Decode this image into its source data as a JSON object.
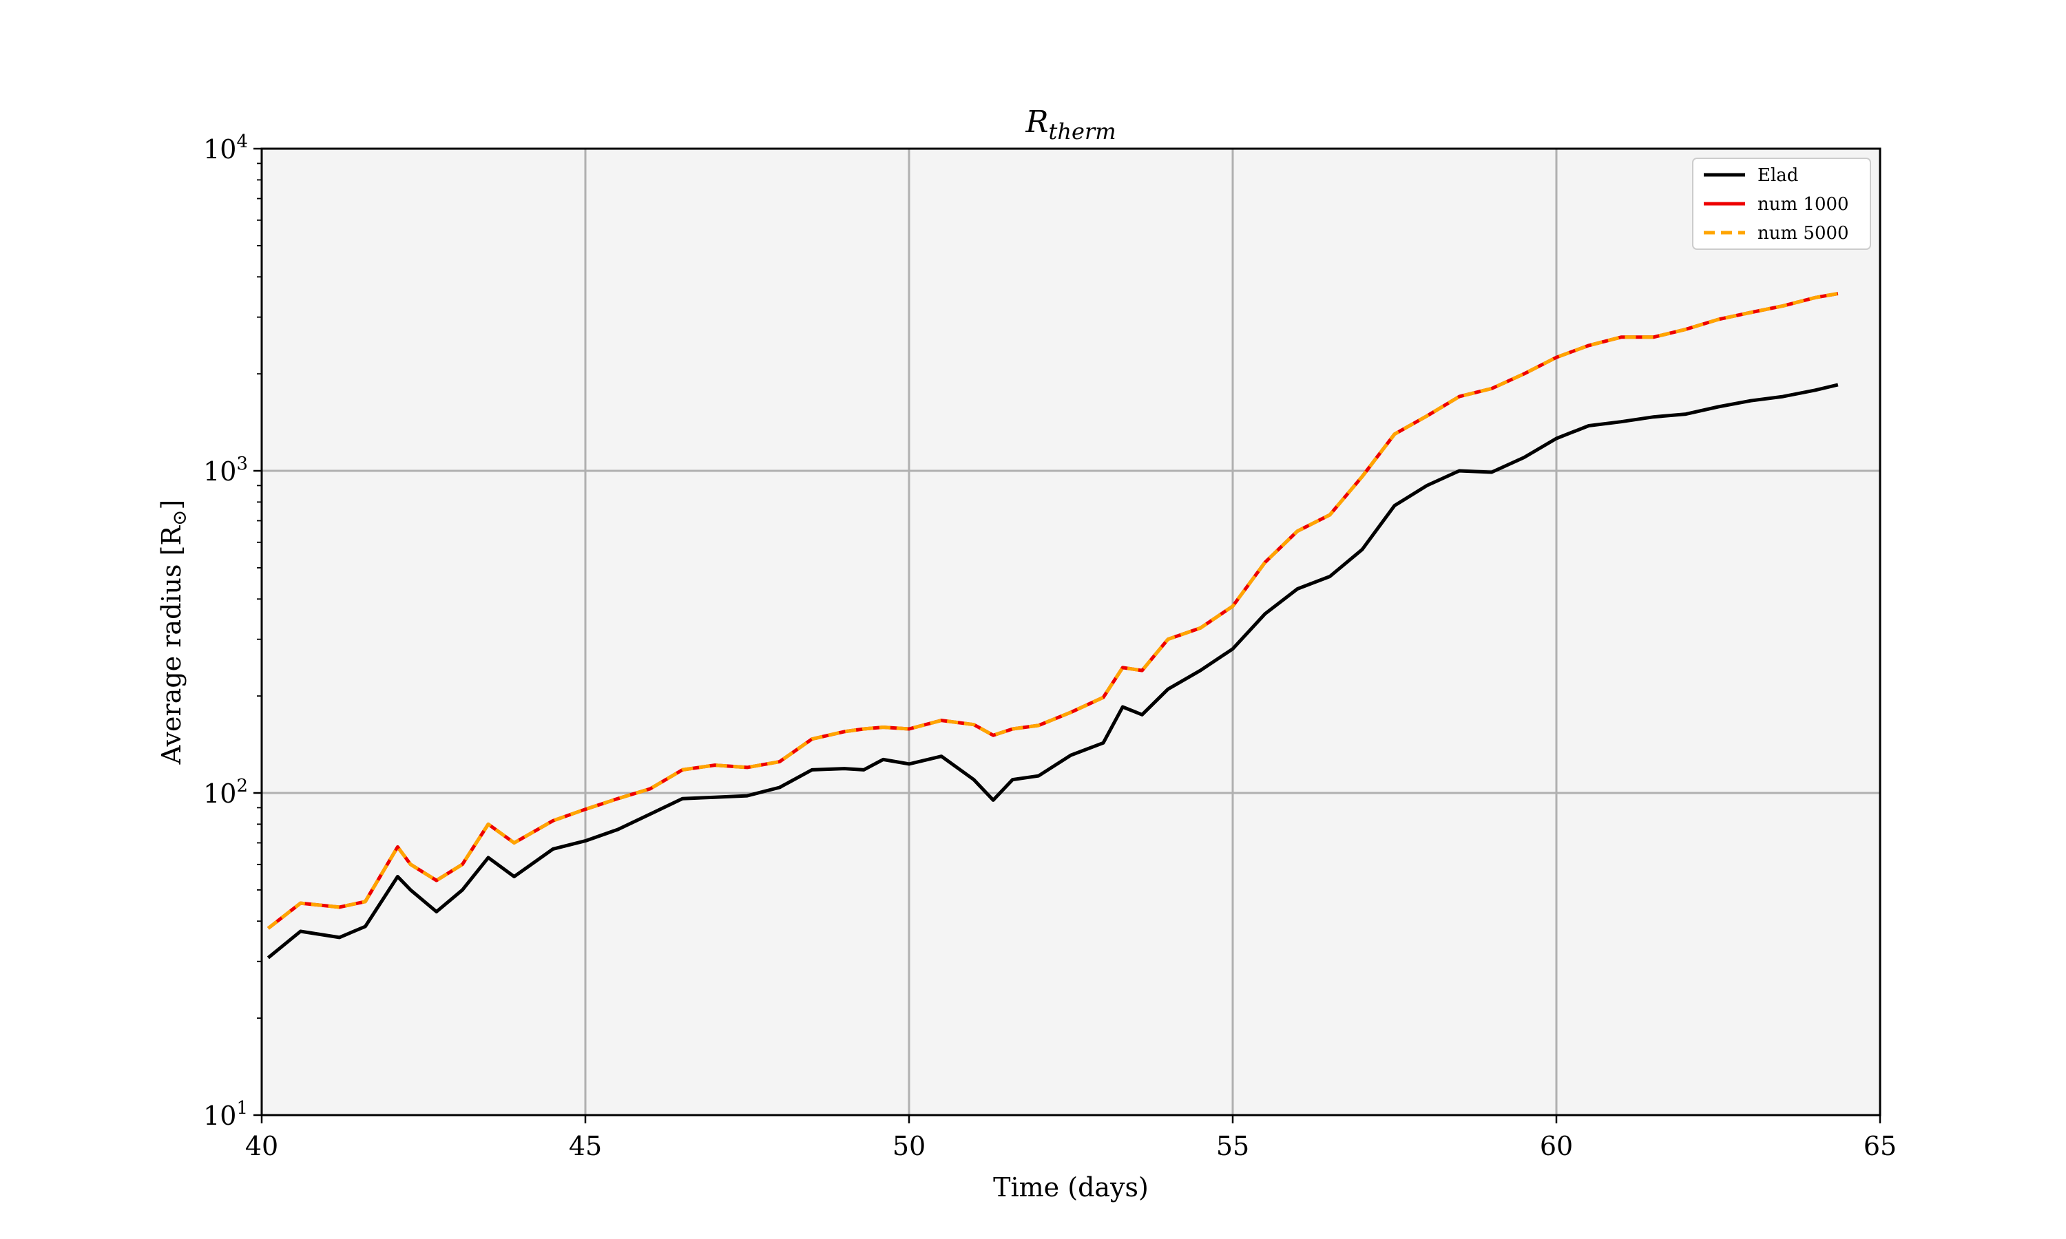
{
  "chart_data": {
    "type": "line",
    "title": "R_therm",
    "title_base": "R",
    "title_sub": "therm",
    "xlabel": "Time (days)",
    "ylabel_base": "Average radius [R",
    "ylabel_sub": "⊙",
    "ylabel_end": "]",
    "xlim": [
      40,
      65
    ],
    "ylim": [
      10,
      10000
    ],
    "yscale": "log",
    "grid": true,
    "plot_background": "#f4f4f4",
    "legend_position": "top-right",
    "x_ticks": [
      40,
      45,
      50,
      55,
      60,
      65
    ],
    "x_tick_labels": [
      "40",
      "45",
      "50",
      "55",
      "60",
      "65"
    ],
    "y_ticks": [
      10,
      100,
      1000,
      10000
    ],
    "y_tick_labels": [
      {
        "base": "10",
        "exp": "1"
      },
      {
        "base": "10",
        "exp": "2"
      },
      {
        "base": "10",
        "exp": "3"
      },
      {
        "base": "10",
        "exp": "4"
      }
    ],
    "x": [
      40.1,
      40.6,
      41.2,
      41.6,
      42.1,
      42.3,
      42.7,
      43.1,
      43.5,
      43.9,
      44.5,
      45.0,
      45.5,
      46.0,
      46.5,
      47.0,
      47.5,
      48.0,
      48.5,
      49.0,
      49.3,
      49.6,
      50.0,
      50.5,
      51.0,
      51.3,
      51.6,
      52.0,
      52.5,
      53.0,
      53.3,
      53.6,
      54.0,
      54.5,
      55.0,
      55.5,
      56.0,
      56.5,
      57.0,
      57.5,
      58.0,
      58.5,
      59.0,
      59.5,
      60.0,
      60.5,
      61.0,
      61.5,
      62.0,
      62.5,
      63.0,
      63.5,
      64.0,
      64.35
    ],
    "series": [
      {
        "name": "Elad",
        "color": "#000000",
        "dash": "solid",
        "values": [
          30.8,
          37.2,
          35.6,
          38.5,
          55.0,
          50.0,
          42.8,
          50.0,
          63.0,
          55.0,
          67.0,
          71.0,
          77.0,
          86.0,
          96.0,
          97.0,
          98.0,
          104.0,
          118.0,
          119.0,
          118.0,
          127.0,
          123.0,
          130.0,
          110.0,
          95.0,
          110.0,
          113.0,
          131.0,
          143.0,
          185.0,
          175.0,
          210.0,
          240.0,
          280.0,
          360.0,
          430.0,
          470.0,
          570.0,
          780.0,
          900.0,
          1000.0,
          990.0,
          1100.0,
          1260.0,
          1380.0,
          1420.0,
          1470.0,
          1500.0,
          1580.0,
          1650.0,
          1700.0,
          1780.0,
          1850.0
        ]
      },
      {
        "name": "num 1000",
        "color": "#ee0000",
        "dash": "solid",
        "values": [
          38.0,
          45.5,
          44.2,
          46.0,
          68.0,
          60.0,
          53.5,
          60.0,
          80.0,
          70.0,
          82.0,
          89.0,
          96.0,
          103.0,
          118.0,
          122.0,
          120.0,
          125.0,
          147.0,
          155.0,
          158.0,
          160.0,
          158.0,
          168.0,
          163.0,
          151.0,
          158.0,
          162.0,
          178.0,
          198.0,
          245.0,
          240.0,
          300.0,
          325.0,
          380.0,
          520.0,
          650.0,
          730.0,
          960.0,
          1300.0,
          1480.0,
          1700.0,
          1800.0,
          2000.0,
          2250.0,
          2450.0,
          2600.0,
          2600.0,
          2750.0,
          2950.0,
          3100.0,
          3250.0,
          3450.0,
          3550.0
        ]
      },
      {
        "name": "num 5000",
        "color": "#ffa500",
        "dash": "dashed",
        "values": [
          38.0,
          45.5,
          44.2,
          46.0,
          68.0,
          60.0,
          53.5,
          60.0,
          80.0,
          70.0,
          82.0,
          89.0,
          96.0,
          103.0,
          118.0,
          122.0,
          120.0,
          125.0,
          147.0,
          155.0,
          158.0,
          160.0,
          158.0,
          168.0,
          163.0,
          151.0,
          158.0,
          162.0,
          178.0,
          198.0,
          245.0,
          240.0,
          300.0,
          325.0,
          380.0,
          520.0,
          650.0,
          730.0,
          960.0,
          1300.0,
          1480.0,
          1700.0,
          1800.0,
          2000.0,
          2250.0,
          2450.0,
          2600.0,
          2600.0,
          2750.0,
          2950.0,
          3100.0,
          3250.0,
          3450.0,
          3550.0
        ]
      }
    ]
  }
}
